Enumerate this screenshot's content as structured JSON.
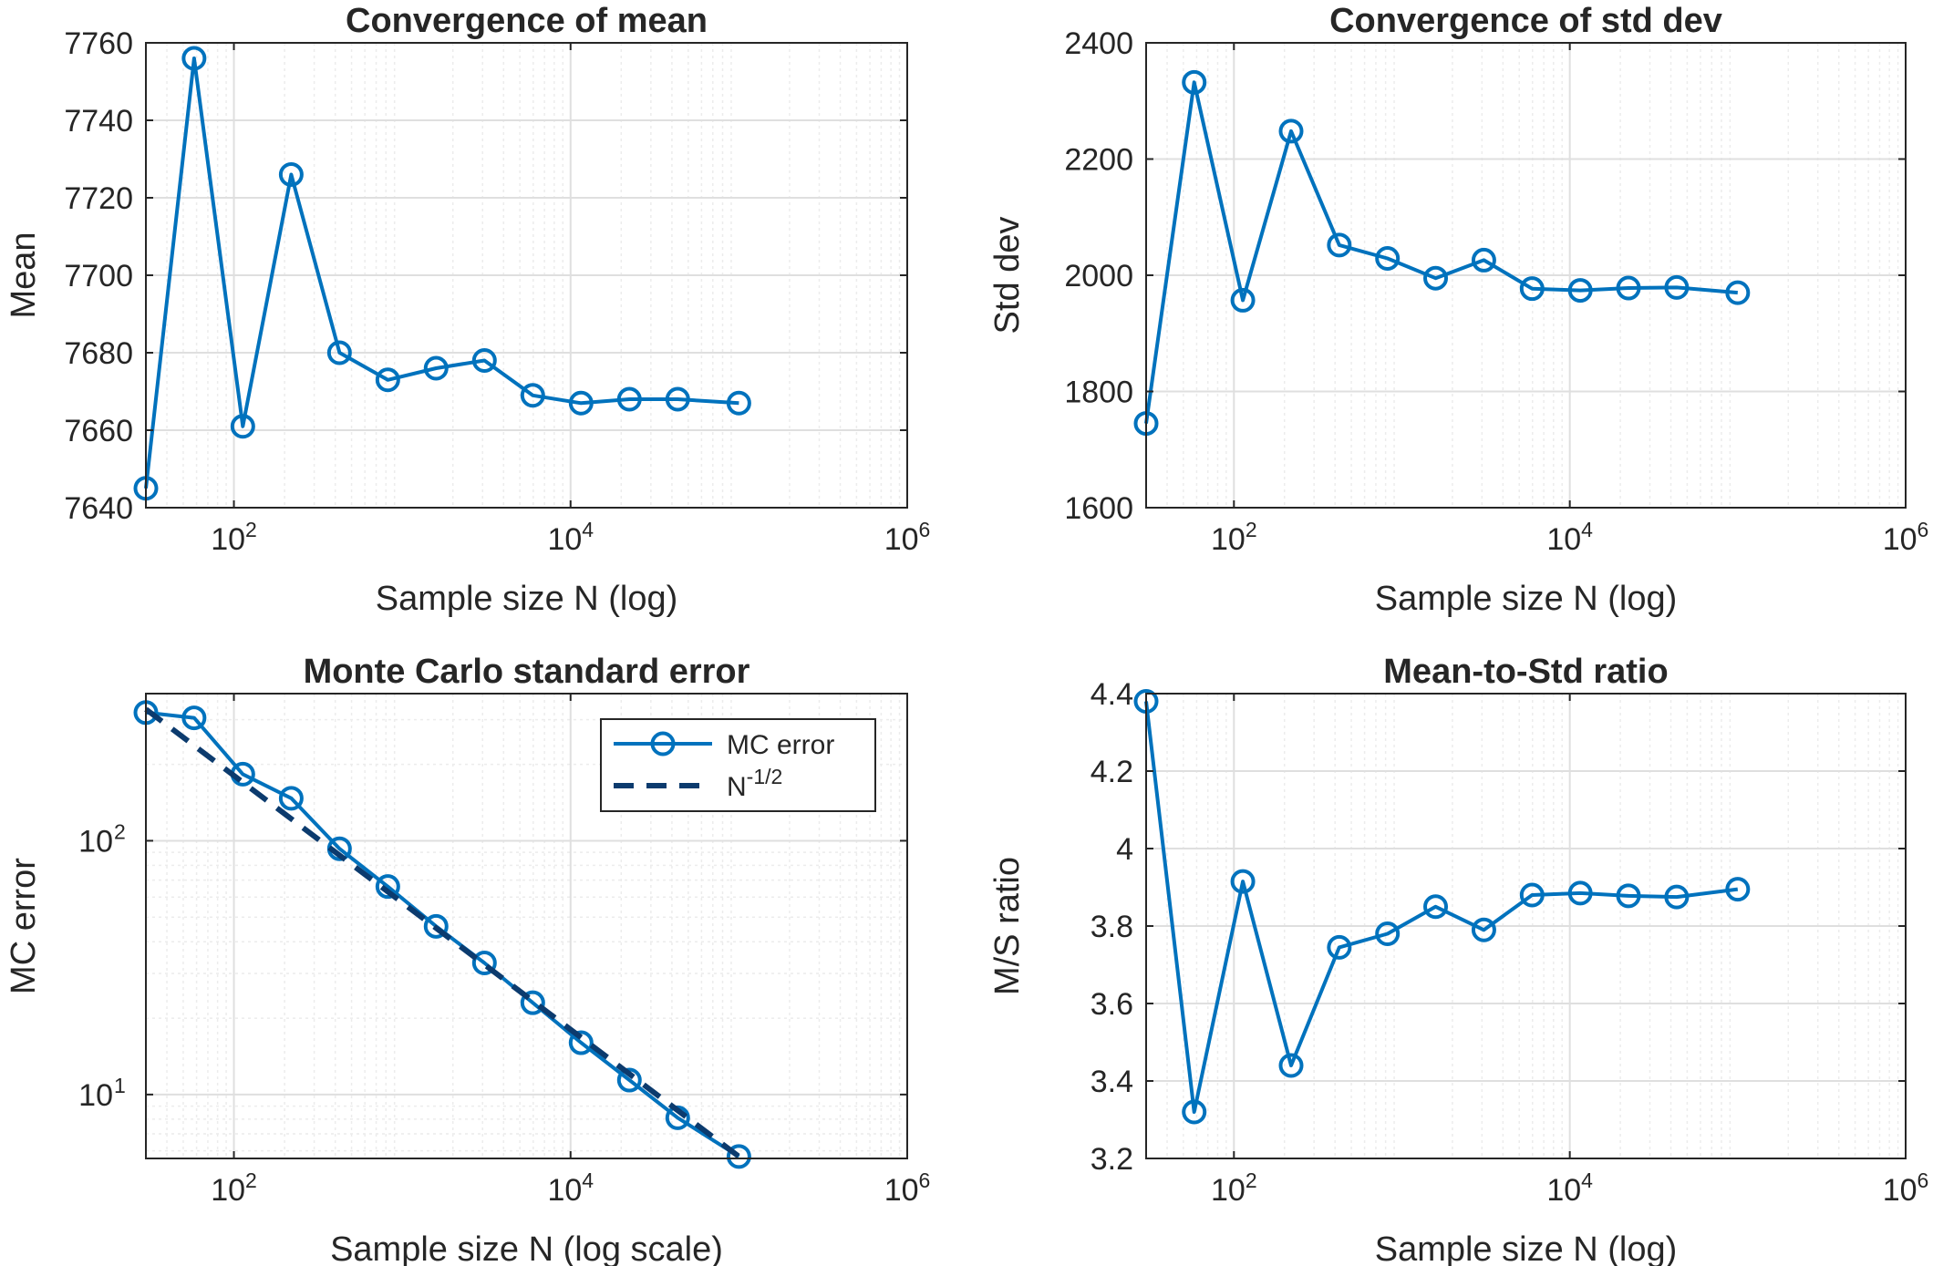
{
  "chart_data": [
    {
      "type": "line",
      "title": "Convergence of mean",
      "xlabel": "Sample size N (log)",
      "ylabel": "Mean",
      "xscale": "log",
      "yscale": "linear",
      "xlim": [
        30,
        1000000
      ],
      "ylim": [
        7640,
        7760
      ],
      "grid": true,
      "xticks": [
        100,
        10000,
        1000000
      ],
      "xtick_labels": [
        {
          "base": "10",
          "exp": "2"
        },
        {
          "base": "10",
          "exp": "4"
        },
        {
          "base": "10",
          "exp": "6"
        }
      ],
      "yticks": [
        "7640",
        "7660",
        "7680",
        "7700",
        "7720",
        "7740",
        "7760"
      ],
      "series": [
        {
          "color": "#0072BD",
          "marker": "circle",
          "x": [
            30,
            58,
            113,
            219,
            424,
            821,
            1589,
            3079,
            5963,
            11547,
            22363,
            43308,
            100000
          ],
          "y": [
            7645,
            7756,
            7661,
            7726,
            7680,
            7673,
            7676,
            7678,
            7669,
            7667,
            7668,
            7668,
            7667
          ]
        }
      ]
    },
    {
      "type": "line",
      "title": "Convergence of std dev",
      "xlabel": "Sample size N (log)",
      "ylabel": "Std dev",
      "xscale": "log",
      "yscale": "linear",
      "xlim": [
        30,
        1000000
      ],
      "ylim": [
        1600,
        2400
      ],
      "grid": true,
      "xticks": [
        100,
        10000,
        1000000
      ],
      "xtick_labels": [
        {
          "base": "10",
          "exp": "2"
        },
        {
          "base": "10",
          "exp": "4"
        },
        {
          "base": "10",
          "exp": "6"
        }
      ],
      "yticks": [
        "1600",
        "1800",
        "2000",
        "2200",
        "2400"
      ],
      "series": [
        {
          "color": "#0072BD",
          "marker": "circle",
          "x": [
            30,
            58,
            113,
            219,
            424,
            821,
            1589,
            3079,
            5963,
            11547,
            22363,
            43308,
            100000
          ],
          "y": [
            1745,
            2332,
            1957,
            2248,
            2052,
            2029,
            1995,
            2026,
            1977,
            1974,
            1978,
            1979,
            1970
          ]
        }
      ]
    },
    {
      "type": "line",
      "title": "Monte Carlo standard error",
      "xlabel": "Sample size N (log scale)",
      "ylabel": "MC error",
      "xscale": "log",
      "yscale": "log",
      "xlim": [
        30,
        1000000
      ],
      "ylim": [
        5.6,
        380
      ],
      "grid": true,
      "xticks": [
        100,
        10000,
        1000000
      ],
      "xtick_labels": [
        {
          "base": "10",
          "exp": "2"
        },
        {
          "base": "10",
          "exp": "4"
        },
        {
          "base": "10",
          "exp": "6"
        }
      ],
      "yticks_log": [
        10,
        100
      ],
      "ytick_labels": [
        {
          "base": "10",
          "exp": "1"
        },
        {
          "base": "10",
          "exp": "2"
        }
      ],
      "legend": {
        "position": "top-right"
      },
      "series": [
        {
          "name": "MC error",
          "color": "#0072BD",
          "marker": "circle",
          "dash": false,
          "x": [
            30,
            58,
            113,
            219,
            424,
            821,
            1589,
            3079,
            5963,
            11547,
            22363,
            43308,
            100000
          ],
          "y": [
            320,
            305,
            183,
            147,
            93,
            66,
            46,
            33,
            23,
            16,
            11.4,
            8.1,
            5.7
          ]
        },
        {
          "name": "N",
          "name_sup": "-1/2",
          "color": "#0C3B6E",
          "marker": "none",
          "dash": true,
          "x": [
            30,
            100000
          ],
          "y": [
            330,
            5.7
          ]
        }
      ]
    },
    {
      "type": "line",
      "title": "Mean-to-Std ratio",
      "xlabel": "Sample size N (log)",
      "ylabel": "M/S ratio",
      "xscale": "log",
      "yscale": "linear",
      "xlim": [
        30,
        1000000
      ],
      "ylim": [
        3.2,
        4.4
      ],
      "grid": true,
      "xticks": [
        100,
        10000,
        1000000
      ],
      "xtick_labels": [
        {
          "base": "10",
          "exp": "2"
        },
        {
          "base": "10",
          "exp": "4"
        },
        {
          "base": "10",
          "exp": "6"
        }
      ],
      "yticks": [
        "3.2",
        "3.4",
        "3.6",
        "3.8",
        "4",
        "4.2",
        "4.4"
      ],
      "series": [
        {
          "color": "#0072BD",
          "marker": "circle",
          "x": [
            30,
            58,
            113,
            219,
            424,
            821,
            1589,
            3079,
            5963,
            11547,
            22363,
            43308,
            100000
          ],
          "y": [
            4.38,
            3.32,
            3.915,
            3.44,
            3.745,
            3.78,
            3.85,
            3.79,
            3.88,
            3.885,
            3.878,
            3.875,
            3.895
          ]
        }
      ]
    }
  ]
}
